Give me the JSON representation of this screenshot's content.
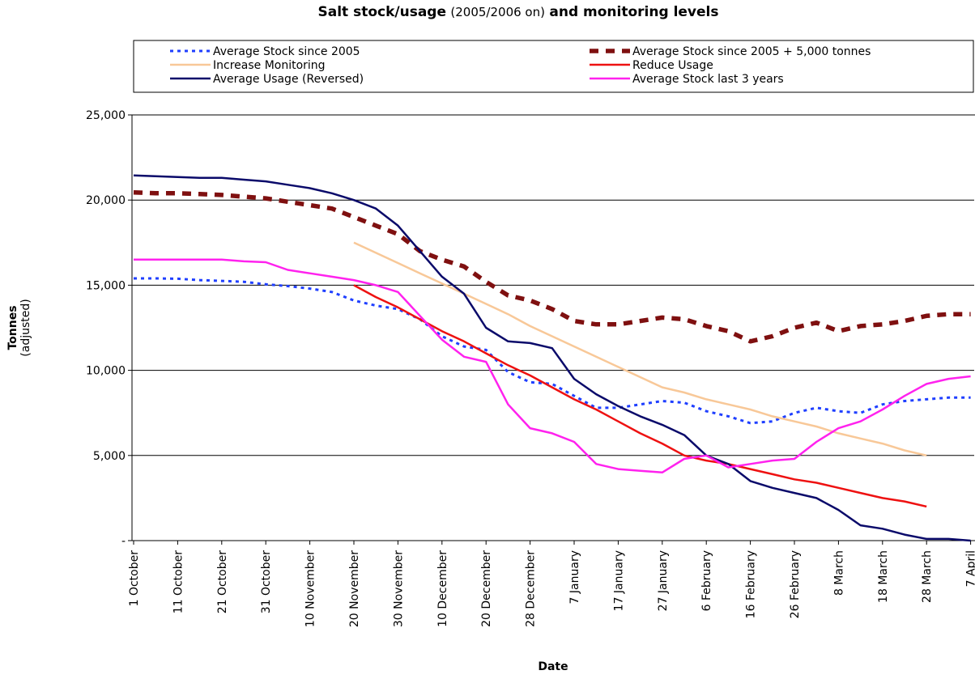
{
  "chart_data": {
    "type": "line",
    "title": [
      "Salt stock/usage",
      "(2005/2006 on)",
      "and monitoring levels"
    ],
    "y_label": [
      "Tonnes",
      "(adjusted)"
    ],
    "x_label": "Date",
    "categories": [
      "1 October",
      null,
      "11 October",
      null,
      "21 October",
      null,
      "31 October",
      null,
      "10 November",
      null,
      "20 November",
      null,
      "30 November",
      null,
      "10 December",
      null,
      "20 December",
      null,
      "28 December",
      null,
      "7 January",
      null,
      "17 January",
      null,
      "27 January",
      null,
      "6 February",
      null,
      "16 February",
      null,
      "26 February",
      null,
      "8 March",
      null,
      "18 March",
      null,
      "28 March",
      null,
      "7 April"
    ],
    "ylim": [
      0,
      25000
    ],
    "yticks": [
      {
        "value": 0,
        "label": "-"
      },
      {
        "value": 5000,
        "label": "5,000"
      },
      {
        "value": 10000,
        "label": "10,000"
      },
      {
        "value": 15000,
        "label": "15,000"
      },
      {
        "value": 20000,
        "label": "20,000"
      },
      {
        "value": 25000,
        "label": "25,000"
      }
    ],
    "grid": true,
    "series": [
      {
        "name": "Average Stock since 2005",
        "color": "#1f3fff",
        "dash": "dotted",
        "values": [
          15400,
          15400,
          15380,
          15300,
          15250,
          15200,
          15050,
          14950,
          14800,
          14600,
          14100,
          13800,
          13600,
          13000,
          12000,
          11400,
          11200,
          9900,
          9300,
          9200,
          8500,
          7800,
          7800,
          8000,
          8200,
          8100,
          7600,
          7300,
          6900,
          7000,
          7500,
          7800,
          7600,
          7500,
          8000,
          8200,
          8300,
          8400,
          8400
        ]
      },
      {
        "name": "Average Stock since 2005 + 5,000 tonnes",
        "color": "#7f1010",
        "dash": "dashed",
        "values": [
          20450,
          20400,
          20400,
          20350,
          20300,
          20200,
          20100,
          19900,
          19700,
          19500,
          19000,
          18500,
          18000,
          17000,
          16500,
          16100,
          15200,
          14400,
          14100,
          13600,
          12900,
          12700,
          12700,
          12900,
          13100,
          13000,
          12600,
          12300,
          11700,
          12000,
          12500,
          12800,
          12300,
          12600,
          12700,
          12900,
          13200,
          13300,
          13300
        ]
      },
      {
        "name": "Increase Monitoring",
        "color": "#f8c898",
        "dash": "solid",
        "values": [
          null,
          null,
          null,
          null,
          null,
          null,
          null,
          null,
          null,
          null,
          17500,
          16900,
          16300,
          15700,
          15100,
          14500,
          13900,
          13300,
          12600,
          12000,
          11400,
          10800,
          10200,
          9600,
          9000,
          8700,
          8300,
          8000,
          7700,
          7300,
          7000,
          6700,
          6300,
          6000,
          5700,
          5300,
          5000,
          null,
          null
        ]
      },
      {
        "name": "Reduce Usage",
        "color": "#ee1111",
        "dash": "solid",
        "values": [
          null,
          null,
          null,
          null,
          null,
          null,
          null,
          null,
          null,
          null,
          15000,
          14300,
          13700,
          13000,
          12300,
          11700,
          11000,
          10300,
          9700,
          9000,
          8300,
          7700,
          7000,
          6300,
          5700,
          5000,
          4700,
          4500,
          4200,
          3900,
          3600,
          3400,
          3100,
          2800,
          2500,
          2300,
          2000,
          null,
          null
        ]
      },
      {
        "name": "Average Usage (Reversed)",
        "color": "#0a0a6a",
        "dash": "solid",
        "values": [
          21450,
          21400,
          21350,
          21300,
          21300,
          21200,
          21100,
          20900,
          20700,
          20400,
          20000,
          19500,
          18500,
          17000,
          15500,
          14500,
          12500,
          11700,
          11600,
          11300,
          9500,
          8600,
          7900,
          7300,
          6800,
          6200,
          5000,
          4500,
          3500,
          3100,
          2800,
          2500,
          1800,
          900,
          700,
          350,
          100,
          100,
          0
        ]
      },
      {
        "name": "Average Stock last 3 years",
        "color": "#ff22ee",
        "dash": "solid",
        "values": [
          16500,
          16500,
          16500,
          16500,
          16500,
          16400,
          16350,
          15900,
          15700,
          15500,
          15300,
          15000,
          14600,
          13200,
          11800,
          10800,
          10500,
          8000,
          6600,
          6300,
          5800,
          4500,
          4200,
          4100,
          4000,
          4800,
          5000,
          4300,
          4500,
          4700,
          4800,
          5800,
          6600,
          7000,
          7700,
          8500,
          9200,
          9500,
          9650
        ]
      }
    ]
  }
}
